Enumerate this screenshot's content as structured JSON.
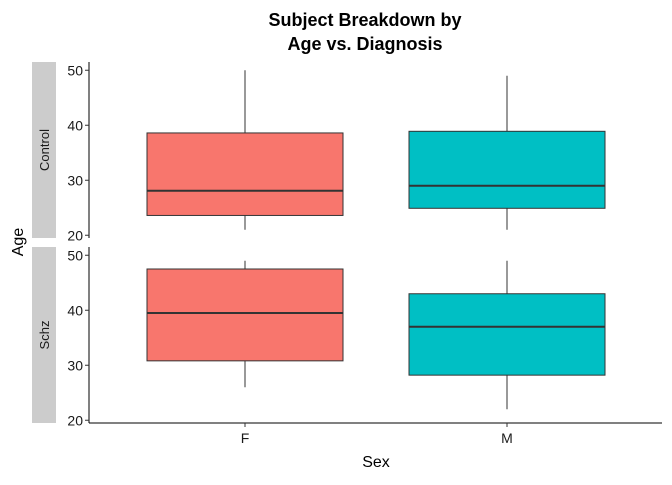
{
  "chart_data": {
    "type": "boxplot",
    "title_lines": [
      "Subject Breakdown by",
      "Age vs. Diagnosis"
    ],
    "xlabel": "Sex",
    "ylabel": "Age",
    "categories": [
      "F",
      "M"
    ],
    "ylim": [
      19.5,
      51.5
    ],
    "yticks": [
      20,
      30,
      40,
      50
    ],
    "colors": {
      "F": "#F8766D",
      "M": "#00BFC4"
    },
    "panels": [
      {
        "name": "Control",
        "boxes": [
          {
            "category": "F",
            "min": 21,
            "q1": 23.6,
            "median": 28.1,
            "q3": 38.6,
            "max": 50
          },
          {
            "category": "M",
            "min": 21,
            "q1": 24.9,
            "median": 29.0,
            "q3": 38.9,
            "max": 49
          }
        ]
      },
      {
        "name": "Schz",
        "boxes": [
          {
            "category": "F",
            "min": 26,
            "q1": 30.8,
            "median": 39.5,
            "q3": 47.5,
            "max": 49
          },
          {
            "category": "M",
            "min": 22,
            "q1": 28.2,
            "median": 37.0,
            "q3": 43.0,
            "max": 49
          }
        ]
      }
    ],
    "grid": false,
    "legend": "none"
  }
}
